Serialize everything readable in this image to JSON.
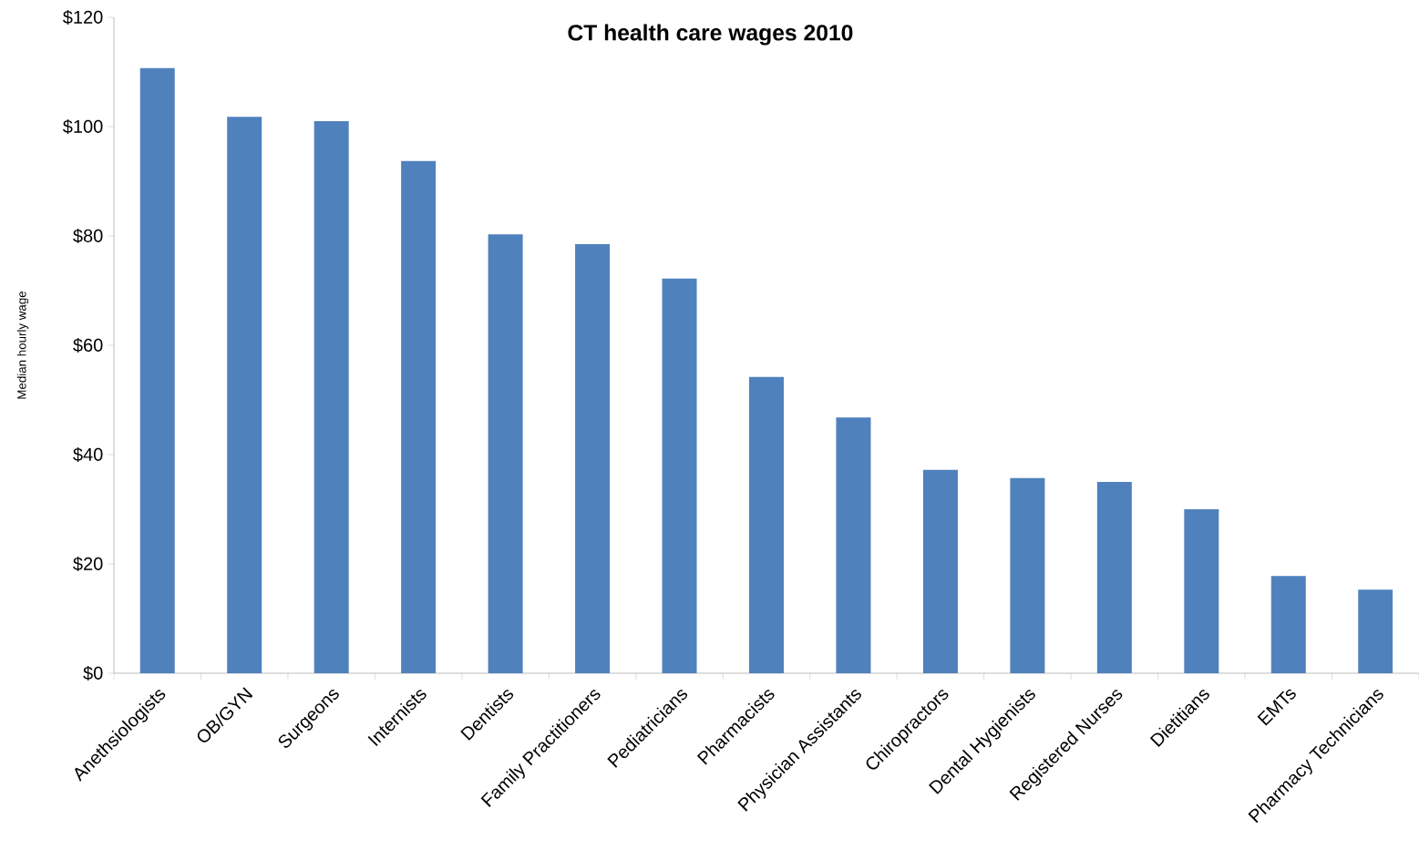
{
  "chart_data": {
    "type": "bar",
    "title": "CT health care wages 2010",
    "ylabel": "Median hourly wage",
    "categories": [
      "Anethsiologists",
      "OB/GYN",
      "Surgeons",
      "Internists",
      "Dentists",
      "Family Practitioners",
      "Pediatricians",
      "Pharmacists",
      "Physician Assistants",
      "Chiropractors",
      "Dental Hygienists",
      "Registered Nurses",
      "Dietitians",
      "EMTs",
      "Pharmacy Technicians"
    ],
    "values": [
      110.7,
      101.8,
      101.0,
      93.7,
      80.3,
      78.5,
      72.2,
      54.2,
      46.8,
      37.2,
      35.7,
      35.0,
      30.0,
      17.8,
      15.3
    ],
    "color": "#4f81bd",
    "ylim": [
      0,
      120
    ],
    "yticks": [
      {
        "value": 0,
        "label": "$0"
      },
      {
        "value": 20,
        "label": "$20"
      },
      {
        "value": 40,
        "label": "$40"
      },
      {
        "value": 60,
        "label": "$60"
      },
      {
        "value": 80,
        "label": "$80"
      },
      {
        "value": 100,
        "label": "$100"
      },
      {
        "value": 120,
        "label": "$120"
      }
    ]
  }
}
